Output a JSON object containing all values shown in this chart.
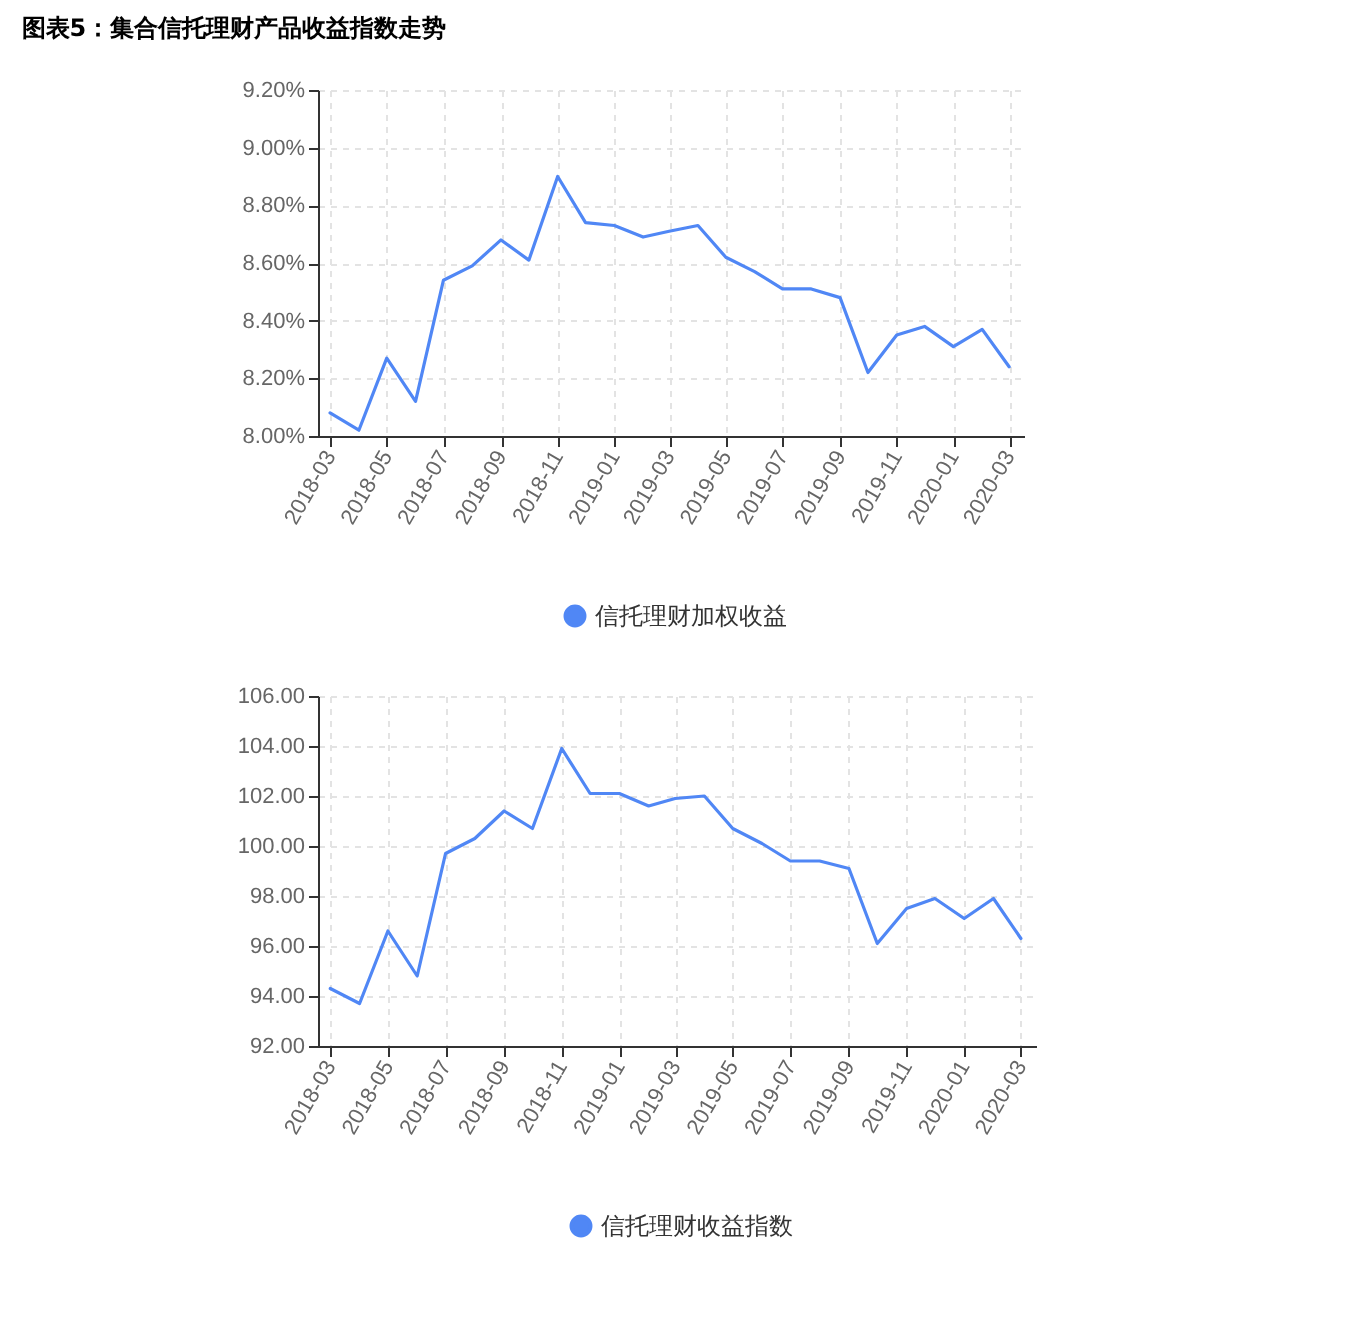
{
  "chart_data": [
    {
      "type": "line",
      "title": "图表5：集合信托理财产品收益指数走势",
      "x": [
        "2018-03",
        "2018-04",
        "2018-05",
        "2018-06",
        "2018-07",
        "2018-08",
        "2018-09",
        "2018-10",
        "2018-11",
        "2018-12",
        "2019-01",
        "2019-02",
        "2019-03",
        "2019-04",
        "2019-05",
        "2019-06",
        "2019-07",
        "2019-08",
        "2019-09",
        "2019-10",
        "2019-11",
        "2019-12",
        "2020-01",
        "2020-02",
        "2020-03"
      ],
      "series": [
        {
          "name": "信托理财加权收益",
          "color": "#5087f5",
          "values": [
            8.08,
            8.02,
            8.27,
            8.12,
            8.54,
            8.59,
            8.68,
            8.61,
            8.9,
            8.74,
            8.73,
            8.69,
            8.71,
            8.73,
            8.62,
            8.57,
            8.51,
            8.51,
            8.48,
            8.22,
            8.35,
            8.38,
            8.31,
            8.37,
            8.24
          ]
        }
      ],
      "xlim": [
        "2018-02-16",
        "2020-03-17"
      ],
      "xticks": [
        "2018-03",
        "2018-05",
        "2018-07",
        "2018-09",
        "2018-11",
        "2019-01",
        "2019-03",
        "2019-05",
        "2019-07",
        "2019-09",
        "2019-11",
        "2020-01",
        "2020-03"
      ],
      "ylim": [
        8.0,
        9.2
      ],
      "yticks": [
        {
          "value": 8.0,
          "label": "8.00%"
        },
        {
          "value": 8.2,
          "label": "8.20%"
        },
        {
          "value": 8.4,
          "label": "8.40%"
        },
        {
          "value": 8.6,
          "label": "8.60%"
        },
        {
          "value": 8.8,
          "label": "8.80%"
        },
        {
          "value": 9.0,
          "label": "9.00%"
        },
        {
          "value": 9.2,
          "label": "9.20%"
        }
      ],
      "grid": true,
      "legend": "bottom",
      "line_style": "solid"
    },
    {
      "type": "line",
      "x": [
        "2018-03",
        "2018-04",
        "2018-05",
        "2018-06",
        "2018-07",
        "2018-08",
        "2018-09",
        "2018-10",
        "2018-11",
        "2018-12",
        "2019-01",
        "2019-02",
        "2019-03",
        "2019-04",
        "2019-05",
        "2019-06",
        "2019-07",
        "2019-08",
        "2019-09",
        "2019-10",
        "2019-11",
        "2019-12",
        "2020-01",
        "2020-02",
        "2020-03"
      ],
      "series": [
        {
          "name": "信托理财收益指数",
          "color": "#5087f5",
          "values": [
            94.3,
            93.7,
            96.6,
            94.8,
            99.7,
            100.3,
            101.4,
            100.7,
            103.9,
            102.1,
            102.1,
            101.6,
            101.9,
            102.0,
            100.7,
            100.1,
            99.4,
            99.4,
            99.1,
            96.1,
            97.5,
            97.9,
            97.1,
            97.9,
            96.3
          ]
        }
      ],
      "xlim": [
        "2018-02-16",
        "2020-03-17"
      ],
      "xticks": [
        "2018-03",
        "2018-05",
        "2018-07",
        "2018-09",
        "2018-11",
        "2019-01",
        "2019-03",
        "2019-05",
        "2019-07",
        "2019-09",
        "2019-11",
        "2020-01",
        "2020-03"
      ],
      "ylim": [
        92.0,
        106.0
      ],
      "yticks": [
        {
          "value": 92,
          "label": "92.00"
        },
        {
          "value": 94,
          "label": "94.00"
        },
        {
          "value": 96,
          "label": "96.00"
        },
        {
          "value": 98,
          "label": "98.00"
        },
        {
          "value": 100,
          "label": "100.00"
        },
        {
          "value": 102,
          "label": "102.00"
        },
        {
          "value": 104,
          "label": "104.00"
        },
        {
          "value": 106,
          "label": "106.00"
        }
      ],
      "grid": true,
      "legend": "bottom",
      "line_style": "solid"
    }
  ]
}
